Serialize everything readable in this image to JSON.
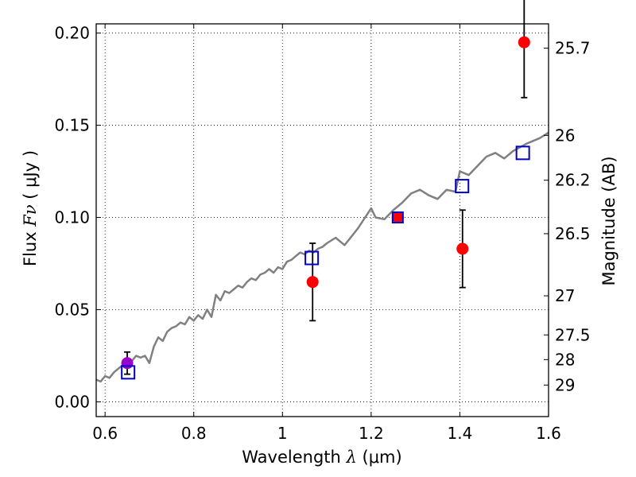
{
  "chart_data": {
    "type": "scatter",
    "title": "",
    "xlabel": {
      "prefix": "Wavelength  ",
      "symbol": "λ",
      "unit": " (μm)"
    },
    "ylabel": {
      "prefix": "Flux  ",
      "symbol": "Fν",
      "unit": " ( μJy )"
    },
    "y2label": "Magnitude (AB)",
    "xlim": [
      0.58,
      1.6
    ],
    "ylim": [
      -0.008,
      0.205
    ],
    "x_ticks": [
      {
        "value": 0.6,
        "label": "0.6"
      },
      {
        "value": 0.8,
        "label": "0.8"
      },
      {
        "value": 1.0,
        "label": "1"
      },
      {
        "value": 1.2,
        "label": "1.2"
      },
      {
        "value": 1.4,
        "label": "1.4"
      },
      {
        "value": 1.6,
        "label": "1.6"
      }
    ],
    "y_ticks": [
      {
        "value": 0.0,
        "label": "0.00"
      },
      {
        "value": 0.05,
        "label": "0.05"
      },
      {
        "value": 0.1,
        "label": "0.10"
      },
      {
        "value": 0.15,
        "label": "0.15"
      },
      {
        "value": 0.2,
        "label": "0.20"
      }
    ],
    "y2_ticks": [
      {
        "flux": 0.1918,
        "label": "25.7"
      },
      {
        "flux": 0.1445,
        "label": "26"
      },
      {
        "flux": 0.1202,
        "label": "26.2"
      },
      {
        "flux": 0.0912,
        "label": "26.5"
      },
      {
        "flux": 0.0575,
        "label": "27"
      },
      {
        "flux": 0.0363,
        "label": "27.5"
      },
      {
        "flux": 0.0229,
        "label": "28"
      },
      {
        "flux": 0.0091,
        "label": "29"
      }
    ],
    "grid": true,
    "colors": {
      "observed": "#ff0000",
      "observed_blue_band": "#9900cc",
      "model_bands": "#0000cc",
      "model_spectrum": "#808080",
      "errorbar": "#000000"
    },
    "series": [
      {
        "kind": "points",
        "values": [
          {
            "x": 0.65,
            "y": 0.021,
            "err": 0.006,
            "color": "#9900cc"
          },
          {
            "x": 1.068,
            "y": 0.065,
            "err": 0.021,
            "color": "#ff0000"
          },
          {
            "x": 1.26,
            "y": 0.1,
            "err": 0.001,
            "color": "#ff0000"
          },
          {
            "x": 1.406,
            "y": 0.083,
            "err": 0.021,
            "color": "#ff0000"
          },
          {
            "x": 1.545,
            "y": 0.195,
            "err": 0.03,
            "color": "#ff0000"
          }
        ]
      },
      {
        "kind": "squares",
        "values": [
          {
            "x": 0.652,
            "y": 0.016
          },
          {
            "x": 1.066,
            "y": 0.078
          },
          {
            "x": 1.26,
            "y": 0.1
          },
          {
            "x": 1.405,
            "y": 0.117
          },
          {
            "x": 1.542,
            "y": 0.135
          }
        ]
      },
      {
        "kind": "line",
        "x": [
          0.58,
          0.59,
          0.6,
          0.61,
          0.62,
          0.63,
          0.64,
          0.65,
          0.66,
          0.67,
          0.68,
          0.69,
          0.7,
          0.71,
          0.72,
          0.73,
          0.74,
          0.75,
          0.76,
          0.77,
          0.78,
          0.79,
          0.8,
          0.81,
          0.82,
          0.83,
          0.84,
          0.85,
          0.86,
          0.87,
          0.88,
          0.89,
          0.9,
          0.91,
          0.92,
          0.93,
          0.94,
          0.95,
          0.96,
          0.97,
          0.98,
          0.99,
          1.0,
          1.01,
          1.02,
          1.03,
          1.04,
          1.05,
          1.06,
          1.07,
          1.08,
          1.09,
          1.1,
          1.12,
          1.14,
          1.15,
          1.17,
          1.2,
          1.21,
          1.23,
          1.25,
          1.27,
          1.29,
          1.31,
          1.33,
          1.35,
          1.37,
          1.39,
          1.4,
          1.42,
          1.44,
          1.46,
          1.48,
          1.5,
          1.52,
          1.55,
          1.58,
          1.6
        ],
        "y": [
          0.012,
          0.011,
          0.014,
          0.013,
          0.016,
          0.018,
          0.02,
          0.023,
          0.022,
          0.025,
          0.024,
          0.025,
          0.021,
          0.03,
          0.035,
          0.033,
          0.038,
          0.04,
          0.041,
          0.043,
          0.042,
          0.046,
          0.044,
          0.047,
          0.045,
          0.05,
          0.046,
          0.058,
          0.055,
          0.06,
          0.059,
          0.061,
          0.063,
          0.062,
          0.065,
          0.067,
          0.066,
          0.069,
          0.07,
          0.072,
          0.07,
          0.073,
          0.072,
          0.076,
          0.077,
          0.079,
          0.081,
          0.08,
          0.082,
          0.081,
          0.083,
          0.084,
          0.086,
          0.089,
          0.085,
          0.088,
          0.094,
          0.105,
          0.1,
          0.099,
          0.104,
          0.108,
          0.113,
          0.115,
          0.112,
          0.11,
          0.115,
          0.114,
          0.125,
          0.123,
          0.128,
          0.133,
          0.135,
          0.132,
          0.136,
          0.14,
          0.143,
          0.146
        ]
      }
    ]
  }
}
